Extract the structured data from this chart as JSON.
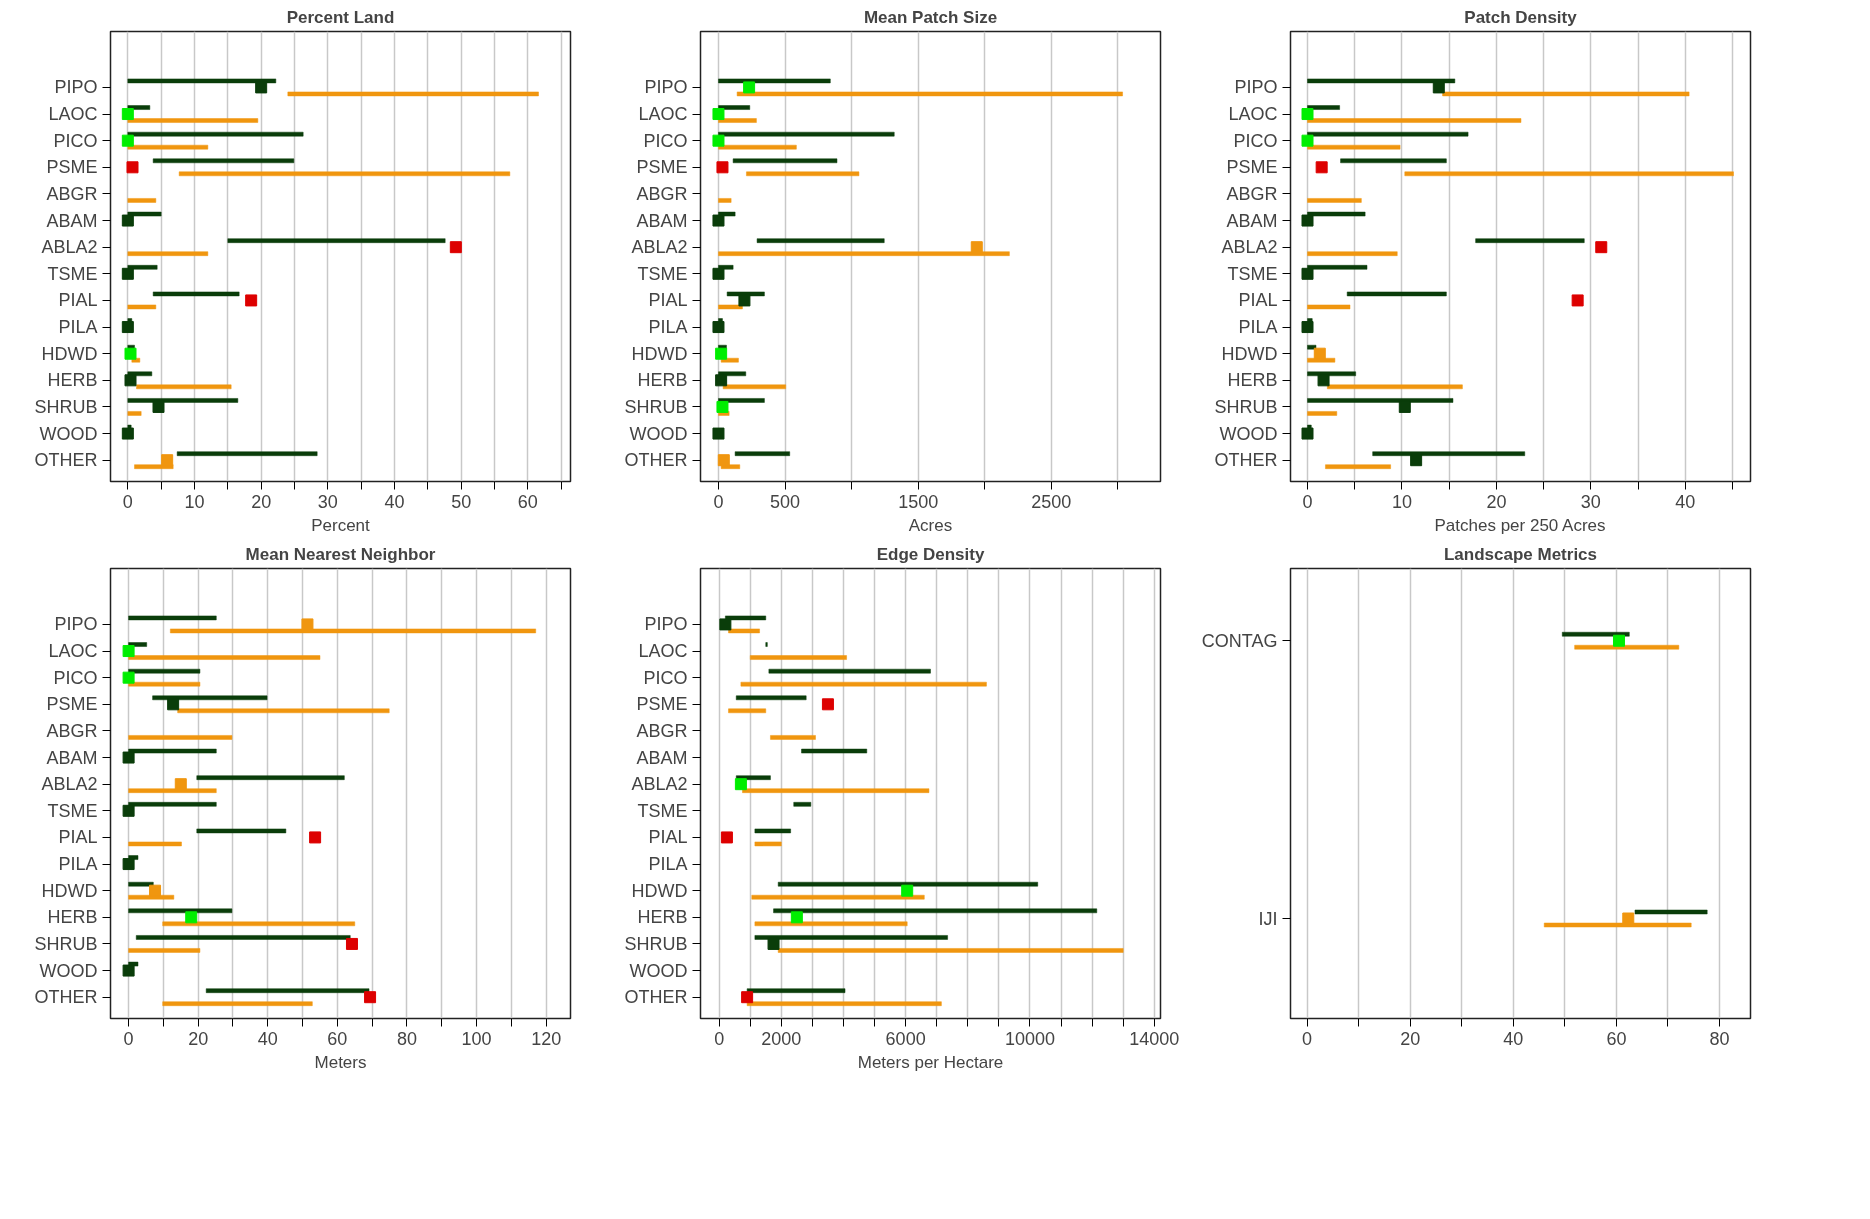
{
  "chart_data": [
    {
      "type": "bar",
      "orientation": "horizontal",
      "title": "Percent Land",
      "xlabel": "Percent",
      "grid": "x",
      "marker": "square",
      "categories": [
        "PIPO",
        "LAOC",
        "PICO",
        "PSME",
        "ABGR",
        "ABAM",
        "ABLA2",
        "TSME",
        "PIAL",
        "PILA",
        "HDWD",
        "HERB",
        "SHRUB",
        "WOOD",
        "OTHER"
      ],
      "xlim": [
        -2.6,
        66.4
      ],
      "xticks": [
        0,
        {
          "value": 5,
          "label": null
        },
        10,
        {
          "value": 15,
          "label": null
        },
        20,
        {
          "value": 25,
          "label": null
        },
        30,
        {
          "value": 35,
          "label": null
        },
        40,
        {
          "value": 45,
          "label": null
        },
        50,
        {
          "value": 55,
          "label": null
        },
        60,
        {
          "value": 65,
          "label": null
        }
      ],
      "series": [
        {
          "type": "bar",
          "color": "#0a3d0a",
          "base": [
            0,
            0,
            0,
            3.8,
            null,
            0,
            15,
            0,
            3.8,
            0,
            0,
            0,
            0,
            0,
            7.4
          ],
          "values": [
            22.2,
            3.3,
            26.3,
            21.1,
            null,
            5,
            32.6,
            4.4,
            12.9,
            0.6,
            1,
            3.6,
            16.5,
            0.5,
            21
          ]
        },
        {
          "type": "bar",
          "color": "#f0960f",
          "base": [
            24,
            0,
            0,
            7.7,
            0,
            null,
            0,
            null,
            0,
            null,
            0.6,
            1.3,
            0,
            null,
            1
          ],
          "values": [
            37.6,
            19.5,
            12,
            49.6,
            4.2,
            null,
            12,
            null,
            4.2,
            null,
            1.2,
            14.2,
            2,
            null,
            5.8
          ]
        },
        {
          "type": "scatter",
          "color": "#0a3d0a",
          "values": [
            20,
            null,
            null,
            null,
            null,
            0,
            null,
            0,
            null,
            0,
            null,
            0.4,
            4.6,
            0,
            null
          ]
        },
        {
          "type": "scatter",
          "color": "#00ee00",
          "values": [
            null,
            0,
            0,
            null,
            null,
            null,
            null,
            null,
            null,
            null,
            0.4,
            null,
            null,
            null,
            null
          ]
        },
        {
          "type": "scatter",
          "color": "#dd0000",
          "values": [
            null,
            null,
            null,
            0.7,
            null,
            null,
            49.2,
            null,
            18.5,
            null,
            null,
            null,
            null,
            null,
            null
          ]
        },
        {
          "type": "scatter",
          "color": "#f0960f",
          "values": [
            null,
            null,
            null,
            null,
            null,
            null,
            null,
            null,
            null,
            null,
            null,
            null,
            null,
            null,
            5.9
          ]
        }
      ]
    },
    {
      "type": "bar",
      "orientation": "horizontal",
      "title": "Mean Patch Size",
      "xlabel": "Acres",
      "grid": "x",
      "marker": "square",
      "categories": [
        "PIPO",
        "LAOC",
        "PICO",
        "PSME",
        "ABGR",
        "ABAM",
        "ABLA2",
        "TSME",
        "PIAL",
        "PILA",
        "HDWD",
        "HERB",
        "SHRUB",
        "WOOD",
        "OTHER"
      ],
      "xlim": [
        -135,
        3320
      ],
      "xticks": [
        0,
        500,
        {
          "value": 1000,
          "label": null
        },
        1500,
        {
          "value": 2000,
          "label": null
        },
        2500,
        {
          "value": 3000,
          "label": null
        }
      ],
      "series": [
        {
          "type": "bar",
          "color": "#0a3d0a",
          "base": [
            0,
            0,
            0,
            110,
            null,
            0,
            290,
            0,
            65,
            0,
            0,
            0,
            0,
            null,
            125
          ],
          "values": [
            840,
            235,
            1320,
            780,
            null,
            125,
            955,
            110,
            280,
            30,
            60,
            205,
            345,
            null,
            410
          ]
        },
        {
          "type": "bar",
          "color": "#f0960f",
          "base": [
            140,
            0,
            0,
            210,
            0,
            null,
            0,
            null,
            0,
            null,
            20,
            35,
            0,
            null,
            20
          ],
          "values": [
            2895,
            285,
            585,
            845,
            95,
            null,
            2185,
            null,
            180,
            null,
            130,
            470,
            80,
            null,
            140
          ]
        },
        {
          "type": "scatter",
          "color": "#0a3d0a",
          "values": [
            null,
            null,
            null,
            null,
            null,
            0,
            null,
            0,
            195,
            0,
            null,
            20,
            null,
            0,
            null
          ]
        },
        {
          "type": "scatter",
          "color": "#00ee00",
          "values": [
            230,
            0,
            0,
            null,
            null,
            null,
            null,
            null,
            null,
            null,
            20,
            null,
            30,
            null,
            null
          ]
        },
        {
          "type": "scatter",
          "color": "#dd0000",
          "values": [
            null,
            null,
            null,
            30,
            null,
            null,
            null,
            null,
            null,
            null,
            null,
            null,
            null,
            null,
            null
          ]
        },
        {
          "type": "scatter",
          "color": "#f0960f",
          "values": [
            null,
            null,
            null,
            null,
            null,
            null,
            1940,
            null,
            null,
            null,
            null,
            null,
            null,
            null,
            40
          ]
        }
      ]
    },
    {
      "type": "bar",
      "orientation": "horizontal",
      "title": "Patch Density",
      "xlabel": "Patches per 250 Acres",
      "grid": "x",
      "marker": "square",
      "categories": [
        "PIPO",
        "LAOC",
        "PICO",
        "PSME",
        "ABGR",
        "ABAM",
        "ABLA2",
        "TSME",
        "PIAL",
        "PILA",
        "HDWD",
        "HERB",
        "SHRUB",
        "WOOD",
        "OTHER"
      ],
      "xlim": [
        -1.8,
        46.9
      ],
      "xticks": [
        0,
        {
          "value": 5,
          "label": null
        },
        10,
        {
          "value": 15,
          "label": null
        },
        20,
        {
          "value": 25,
          "label": null
        },
        30,
        {
          "value": 35,
          "label": null
        },
        40,
        {
          "value": 45,
          "label": null
        }
      ],
      "series": [
        {
          "type": "bar",
          "color": "#0a3d0a",
          "base": [
            0,
            0,
            0,
            3.5,
            null,
            0,
            17.8,
            0,
            4.2,
            0,
            0,
            0,
            0,
            0,
            6.9
          ],
          "values": [
            15.6,
            3.4,
            17,
            11.2,
            null,
            6.1,
            11.5,
            6.3,
            10.5,
            0.5,
            0.9,
            5.1,
            15.4,
            0.4,
            16.1
          ]
        },
        {
          "type": "bar",
          "color": "#f0960f",
          "base": [
            14.3,
            0,
            0,
            10.3,
            0,
            null,
            0,
            null,
            0,
            null,
            0,
            2.1,
            0,
            null,
            1.9
          ],
          "values": [
            26.1,
            22.6,
            9.8,
            34.8,
            5.7,
            null,
            9.5,
            null,
            4.5,
            null,
            2.9,
            14.3,
            3.1,
            null,
            6.9
          ]
        },
        {
          "type": "scatter",
          "color": "#0a3d0a",
          "values": [
            13.9,
            null,
            null,
            null,
            null,
            0,
            null,
            0,
            null,
            0,
            null,
            1.7,
            10.3,
            0,
            11.5
          ]
        },
        {
          "type": "scatter",
          "color": "#00ee00",
          "values": [
            null,
            0,
            0,
            null,
            null,
            null,
            null,
            null,
            null,
            null,
            null,
            null,
            null,
            null,
            null
          ]
        },
        {
          "type": "scatter",
          "color": "#dd0000",
          "values": [
            null,
            null,
            null,
            1.5,
            null,
            null,
            31.1,
            null,
            28.6,
            null,
            null,
            null,
            null,
            null,
            null
          ]
        },
        {
          "type": "scatter",
          "color": "#f0960f",
          "values": [
            null,
            null,
            null,
            null,
            null,
            null,
            null,
            null,
            null,
            null,
            1.3,
            null,
            null,
            null,
            null
          ]
        }
      ]
    },
    {
      "type": "bar",
      "orientation": "horizontal",
      "title": "Mean Nearest Neighbor",
      "xlabel": "Meters",
      "grid": "x",
      "marker": "square",
      "categories": [
        "PIPO",
        "LAOC",
        "PICO",
        "PSME",
        "ABGR",
        "ABAM",
        "ABLA2",
        "TSME",
        "PIAL",
        "PILA",
        "HDWD",
        "HERB",
        "SHRUB",
        "WOOD",
        "OTHER"
      ],
      "xlim": [
        -5.2,
        127
      ],
      "xticks": [
        0,
        {
          "value": 10,
          "label": null
        },
        20,
        {
          "value": 30,
          "label": null
        },
        40,
        {
          "value": 50,
          "label": null
        },
        60,
        {
          "value": 70,
          "label": null
        },
        80,
        {
          "value": 90,
          "label": null
        },
        100,
        {
          "value": 110,
          "label": null
        },
        120
      ],
      "series": [
        {
          "type": "bar",
          "color": "#0a3d0a",
          "base": [
            0,
            0,
            0,
            6.9,
            null,
            0,
            19.6,
            0,
            19.6,
            0,
            0,
            0,
            2.2,
            0,
            22.3
          ],
          "values": [
            25.2,
            5.2,
            20.5,
            32.9,
            null,
            25.2,
            42.4,
            25.2,
            25.6,
            2.7,
            7.1,
            29.7,
            61.5,
            2.7,
            46.8
          ]
        },
        {
          "type": "bar",
          "color": "#f0960f",
          "base": [
            12,
            0,
            0,
            14.1,
            0,
            null,
            0,
            null,
            0,
            null,
            0,
            9.8,
            0,
            null,
            9.8
          ],
          "values": [
            105,
            55,
            20.5,
            60.8,
            29.7,
            null,
            25.2,
            null,
            15.2,
            null,
            13,
            55.2,
            20.5,
            null,
            43
          ]
        },
        {
          "type": "scatter",
          "color": "#0a3d0a",
          "values": [
            null,
            null,
            null,
            12.8,
            null,
            0,
            null,
            0,
            null,
            0,
            null,
            null,
            null,
            0,
            null
          ]
        },
        {
          "type": "scatter",
          "color": "#00ee00",
          "values": [
            null,
            0,
            0,
            null,
            null,
            null,
            null,
            null,
            null,
            null,
            null,
            18,
            null,
            null,
            null
          ]
        },
        {
          "type": "scatter",
          "color": "#dd0000",
          "values": [
            null,
            null,
            null,
            null,
            null,
            null,
            null,
            null,
            53.6,
            null,
            null,
            null,
            64.2,
            null,
            69.4
          ]
        },
        {
          "type": "scatter",
          "color": "#f0960f",
          "values": [
            51.4,
            null,
            null,
            null,
            null,
            null,
            15,
            null,
            null,
            null,
            7.6,
            null,
            null,
            null,
            null
          ]
        }
      ]
    },
    {
      "type": "bar",
      "orientation": "horizontal",
      "title": "Edge Density",
      "xlabel": "Meters per Hectare",
      "grid": "x",
      "marker": "square",
      "categories": [
        "PIPO",
        "LAOC",
        "PICO",
        "PSME",
        "ABGR",
        "ABAM",
        "ABLA2",
        "TSME",
        "PIAL",
        "PILA",
        "HDWD",
        "HERB",
        "SHRUB",
        "WOOD",
        "OTHER"
      ],
      "xlim": [
        -600,
        14200
      ],
      "xticks": [
        0,
        {
          "value": 1000,
          "label": null
        },
        2000,
        {
          "value": 3000,
          "label": null
        },
        {
          "value": 4000,
          "label": null
        },
        {
          "value": 5000,
          "label": null
        },
        6000,
        {
          "value": 7000,
          "label": null
        },
        {
          "value": 8000,
          "label": null
        },
        {
          "value": 9000,
          "label": null
        },
        10000,
        {
          "value": 11000,
          "label": null
        },
        {
          "value": 12000,
          "label": null
        },
        {
          "value": 13000,
          "label": null
        },
        14000
      ],
      "series": [
        {
          "type": "bar",
          "color": "#0a3d0a",
          "base": [
            200,
            1500,
            1600,
            550,
            null,
            2650,
            550,
            2400,
            1150,
            null,
            1900,
            1750,
            1150,
            null,
            900
          ],
          "values": [
            1300,
            50,
            5200,
            2250,
            null,
            2100,
            1100,
            550,
            1150,
            null,
            8350,
            10400,
            6200,
            null,
            3150
          ]
        },
        {
          "type": "bar",
          "color": "#f0960f",
          "base": [
            300,
            1000,
            700,
            300,
            1650,
            null,
            750,
            null,
            1150,
            null,
            1050,
            1150,
            1900,
            null,
            900
          ],
          "values": [
            1000,
            3100,
            7900,
            1200,
            1450,
            null,
            6000,
            null,
            850,
            null,
            5550,
            4900,
            11100,
            null,
            6250
          ]
        },
        {
          "type": "scatter",
          "color": "#0a3d0a",
          "values": [
            200,
            null,
            null,
            null,
            null,
            null,
            null,
            null,
            null,
            null,
            null,
            null,
            1750,
            null,
            null
          ]
        },
        {
          "type": "scatter",
          "color": "#00ee00",
          "values": [
            null,
            null,
            null,
            null,
            null,
            null,
            700,
            null,
            null,
            null,
            6050,
            2500,
            null,
            null,
            null
          ]
        },
        {
          "type": "scatter",
          "color": "#dd0000",
          "values": [
            null,
            null,
            null,
            3500,
            null,
            null,
            null,
            null,
            250,
            null,
            null,
            null,
            null,
            null,
            900
          ]
        }
      ]
    },
    {
      "type": "bar",
      "orientation": "horizontal",
      "title": "Landscape Metrics",
      "grid": "x",
      "marker": "square",
      "categories": [
        "CONTAG",
        "IJI"
      ],
      "xlim": [
        -3.2,
        86
      ],
      "xticks": [
        0,
        {
          "value": 10,
          "label": null
        },
        20,
        {
          "value": 30,
          "label": null
        },
        40,
        {
          "value": 50,
          "label": null
        },
        60,
        {
          "value": 70,
          "label": null
        },
        80
      ],
      "series": [
        {
          "type": "bar",
          "color": "#0a3d0a",
          "base": [
            49.5,
            63.6
          ],
          "values": [
            13,
            14
          ]
        },
        {
          "type": "bar",
          "color": "#f0960f",
          "base": [
            51.9,
            46
          ],
          "values": [
            20.2,
            28.5
          ]
        },
        {
          "type": "scatter",
          "color": "#00ee00",
          "values": [
            60.5,
            null
          ]
        },
        {
          "type": "scatter",
          "color": "#f0960f",
          "values": [
            null,
            62.3
          ]
        }
      ]
    }
  ]
}
